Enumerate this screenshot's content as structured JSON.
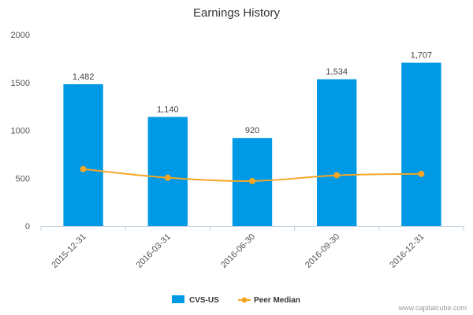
{
  "chart_data": {
    "type": "bar",
    "title": "Earnings History",
    "categories": [
      "2015-12-31",
      "2016-03-31",
      "2016-06-30",
      "2016-09-30",
      "2016-12-31"
    ],
    "ylim": [
      0,
      2000
    ],
    "yticks": [
      0,
      500,
      1000,
      1500,
      2000
    ],
    "grid": false,
    "legend_position": "bottom",
    "series": [
      {
        "name": "CVS-US",
        "type": "bar",
        "color": "#0099e6",
        "values": [
          1482,
          1140,
          920,
          1534,
          1707
        ],
        "labels": [
          "1,482",
          "1,140",
          "920",
          "1,534",
          "1,707"
        ]
      },
      {
        "name": "Peer Median",
        "type": "line",
        "color": "#f5a623",
        "values": [
          595,
          505,
          470,
          530,
          545
        ]
      }
    ],
    "credit": "www.capitalcube.com"
  }
}
